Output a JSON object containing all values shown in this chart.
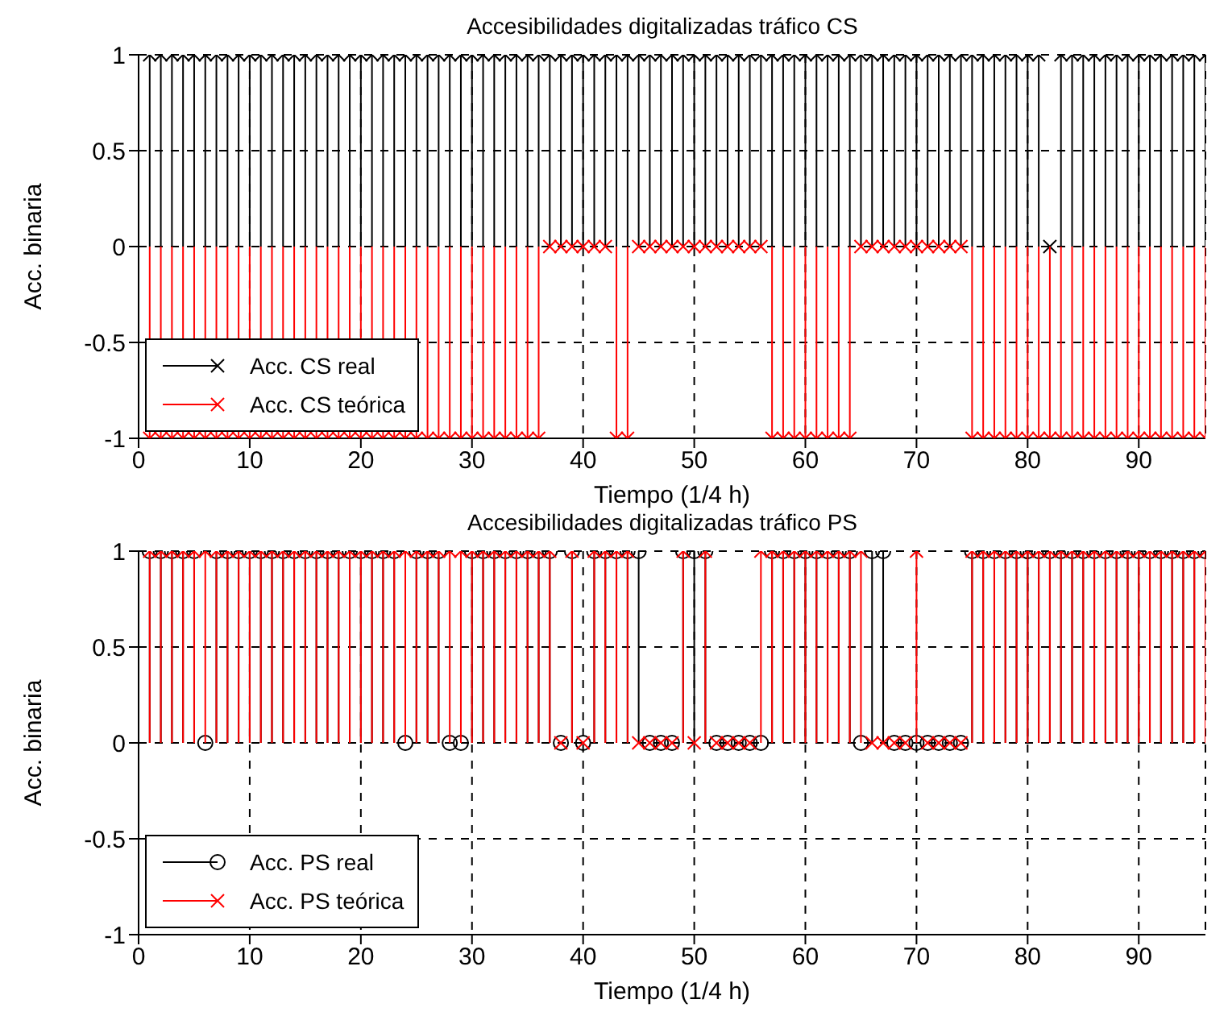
{
  "chart_data": [
    {
      "type": "lollipop",
      "title": "Accesibilidades digitalizadas tráfico CS",
      "xlabel": "Tiempo (1/4 h)",
      "ylabel": "Acc. binaria",
      "xlim": [
        0,
        96
      ],
      "xticks": [
        0,
        10,
        20,
        30,
        40,
        50,
        60,
        70,
        80,
        90
      ],
      "ylim": [
        -1,
        1
      ],
      "yticks": [
        -1,
        -0.5,
        0,
        0.5,
        1
      ],
      "grid": true,
      "legend": "bottom left",
      "x": [
        1,
        2,
        3,
        4,
        5,
        6,
        7,
        8,
        9,
        10,
        11,
        12,
        13,
        14,
        15,
        16,
        17,
        18,
        19,
        20,
        21,
        22,
        23,
        24,
        25,
        26,
        27,
        28,
        29,
        30,
        31,
        32,
        33,
        34,
        35,
        36,
        37,
        38,
        39,
        40,
        41,
        42,
        43,
        44,
        45,
        46,
        47,
        48,
        49,
        50,
        51,
        52,
        53,
        54,
        55,
        56,
        57,
        58,
        59,
        60,
        61,
        62,
        63,
        64,
        65,
        66,
        67,
        68,
        69,
        70,
        71,
        72,
        73,
        74,
        75,
        76,
        77,
        78,
        79,
        80,
        81,
        82,
        83,
        84,
        85,
        86,
        87,
        88,
        89,
        90,
        91,
        92,
        93,
        94,
        95,
        96
      ],
      "series": [
        {
          "name": "Acc. CS real",
          "color": "#000000",
          "marker": "cross",
          "values": [
            1,
            1,
            1,
            1,
            1,
            1,
            1,
            1,
            1,
            1,
            1,
            1,
            1,
            1,
            1,
            1,
            1,
            1,
            1,
            1,
            1,
            1,
            1,
            1,
            1,
            1,
            1,
            1,
            1,
            1,
            1,
            1,
            1,
            1,
            1,
            1,
            1,
            1,
            1,
            1,
            1,
            1,
            1,
            1,
            1,
            1,
            1,
            1,
            1,
            1,
            1,
            1,
            1,
            1,
            1,
            1,
            1,
            1,
            1,
            1,
            1,
            1,
            1,
            1,
            1,
            1,
            1,
            1,
            1,
            1,
            1,
            1,
            1,
            1,
            1,
            1,
            1,
            1,
            1,
            1,
            1,
            0,
            1,
            1,
            1,
            1,
            1,
            1,
            1,
            1,
            1,
            1,
            1,
            1,
            1,
            1
          ]
        },
        {
          "name": "Acc. CS teórica",
          "color": "#ff0000",
          "marker": "cross",
          "values": [
            -1,
            -1,
            -1,
            -1,
            -1,
            -1,
            -1,
            -1,
            -1,
            -1,
            -1,
            -1,
            -1,
            -1,
            -1,
            -1,
            -1,
            -1,
            -1,
            -1,
            -1,
            -1,
            -1,
            -1,
            -1,
            -1,
            -1,
            -1,
            -1,
            -1,
            -1,
            -1,
            -1,
            -1,
            -1,
            -1,
            0,
            0,
            0,
            0,
            0,
            0,
            -1,
            -1,
            0,
            0,
            0,
            0,
            0,
            0,
            0,
            0,
            0,
            0,
            0,
            0,
            -1,
            -1,
            -1,
            -1,
            -1,
            -1,
            -1,
            -1,
            0,
            0,
            0,
            0,
            0,
            0,
            0,
            0,
            0,
            0,
            -1,
            -1,
            -1,
            -1,
            -1,
            -1,
            -1,
            -1,
            -1,
            -1,
            -1,
            -1,
            -1,
            -1,
            -1,
            -1,
            -1,
            -1,
            -1,
            -1,
            -1,
            -1
          ]
        }
      ]
    },
    {
      "type": "lollipop",
      "title": "Accesibilidades digitalizadas tráfico PS",
      "xlabel": "Tiempo (1/4 h)",
      "ylabel": "Acc. binaria",
      "xlim": [
        0,
        96
      ],
      "xticks": [
        0,
        10,
        20,
        30,
        40,
        50,
        60,
        70,
        80,
        90
      ],
      "ylim": [
        -1,
        1
      ],
      "yticks": [
        -1,
        -0.5,
        0,
        0.5,
        1
      ],
      "grid": true,
      "legend": "bottom left",
      "x": [
        1,
        2,
        3,
        4,
        5,
        6,
        7,
        8,
        9,
        10,
        11,
        12,
        13,
        14,
        15,
        16,
        17,
        18,
        19,
        20,
        21,
        22,
        23,
        24,
        25,
        26,
        27,
        28,
        29,
        30,
        31,
        32,
        33,
        34,
        35,
        36,
        37,
        38,
        39,
        40,
        41,
        42,
        43,
        44,
        45,
        46,
        47,
        48,
        49,
        50,
        51,
        52,
        53,
        54,
        55,
        56,
        57,
        58,
        59,
        60,
        61,
        62,
        63,
        64,
        65,
        66,
        67,
        68,
        69,
        70,
        71,
        72,
        73,
        74,
        75,
        76,
        77,
        78,
        79,
        80,
        81,
        82,
        83,
        84,
        85,
        86,
        87,
        88,
        89,
        90,
        91,
        92,
        93,
        94,
        95,
        96
      ],
      "series": [
        {
          "name": "Acc. PS real",
          "color": "#000000",
          "marker": "circle",
          "values": [
            1,
            1,
            1,
            1,
            1,
            0,
            1,
            1,
            1,
            1,
            1,
            1,
            1,
            1,
            1,
            1,
            1,
            1,
            1,
            1,
            1,
            1,
            1,
            0,
            1,
            1,
            1,
            0,
            0,
            1,
            1,
            1,
            1,
            1,
            1,
            1,
            1,
            0,
            1,
            0,
            1,
            1,
            1,
            1,
            1,
            0,
            0,
            0,
            1,
            1,
            1,
            0,
            0,
            0,
            0,
            0,
            1,
            1,
            1,
            1,
            1,
            1,
            1,
            1,
            0,
            1,
            1,
            0,
            0,
            0,
            0,
            0,
            0,
            0,
            1,
            1,
            1,
            1,
            1,
            1,
            1,
            1,
            1,
            1,
            1,
            1,
            1,
            1,
            1,
            1,
            1,
            1,
            1,
            1,
            1,
            1
          ]
        },
        {
          "name": "Acc. PS teórica",
          "color": "#ff0000",
          "marker": "cross",
          "values": [
            1,
            1,
            1,
            1,
            1,
            1,
            1,
            1,
            1,
            1,
            1,
            1,
            1,
            1,
            1,
            1,
            1,
            1,
            1,
            1,
            1,
            1,
            1,
            1,
            1,
            1,
            1,
            1,
            1,
            1,
            1,
            1,
            1,
            1,
            1,
            1,
            1,
            0,
            1,
            0,
            1,
            1,
            1,
            1,
            0,
            0,
            0,
            0,
            1,
            0,
            1,
            0,
            0,
            0,
            0,
            1,
            1,
            1,
            1,
            1,
            1,
            1,
            1,
            1,
            1,
            0,
            0,
            0,
            0,
            1,
            0,
            0,
            0,
            0,
            1,
            1,
            1,
            1,
            1,
            1,
            1,
            1,
            1,
            1,
            1,
            1,
            1,
            1,
            1,
            1,
            1,
            1,
            1,
            1,
            1,
            1
          ]
        }
      ]
    }
  ]
}
